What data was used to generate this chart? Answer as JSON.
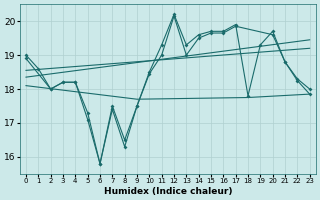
{
  "xlabel": "Humidex (Indice chaleur)",
  "bg_color": "#cce9e9",
  "line_color": "#1a6b6b",
  "grid_color": "#b0d0d0",
  "xlim": [
    -0.5,
    23.5
  ],
  "ylim": [
    15.5,
    20.5
  ],
  "xticks": [
    0,
    1,
    2,
    3,
    4,
    5,
    6,
    7,
    8,
    9,
    10,
    11,
    12,
    13,
    14,
    15,
    16,
    17,
    18,
    19,
    20,
    21,
    22,
    23
  ],
  "yticks": [
    16,
    17,
    18,
    19,
    20
  ],
  "line1_x": [
    0,
    1,
    2,
    3,
    4,
    5,
    6,
    7,
    8,
    9,
    10,
    11,
    12,
    13,
    14,
    15,
    16,
    17,
    18,
    19,
    20,
    21,
    22,
    23
  ],
  "line1_y": [
    19.0,
    18.6,
    18.0,
    18.2,
    18.2,
    17.3,
    15.8,
    17.5,
    16.5,
    17.5,
    18.5,
    19.3,
    20.2,
    19.3,
    19.6,
    19.7,
    19.7,
    19.9,
    17.8,
    19.3,
    19.7,
    18.8,
    18.3,
    18.0
  ],
  "line2_x": [
    0,
    2,
    3,
    4,
    5,
    6,
    7,
    8,
    9,
    10,
    11,
    12,
    13,
    14,
    15,
    16,
    17,
    20,
    21,
    22,
    23
  ],
  "line2_y": [
    18.9,
    18.0,
    18.2,
    18.2,
    17.1,
    15.8,
    17.4,
    16.3,
    17.5,
    18.45,
    19.0,
    20.15,
    19.0,
    19.5,
    19.65,
    19.65,
    19.85,
    19.6,
    18.8,
    18.25,
    17.85
  ],
  "trend1_x": [
    0,
    23
  ],
  "trend1_y": [
    18.35,
    19.45
  ],
  "trend2_x": [
    0,
    9,
    18,
    23
  ],
  "trend2_y": [
    18.1,
    17.7,
    17.75,
    17.85
  ],
  "trend3_x": [
    0,
    23
  ],
  "trend3_y": [
    18.55,
    19.2
  ]
}
